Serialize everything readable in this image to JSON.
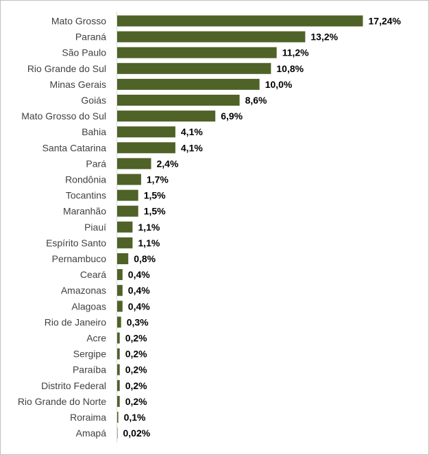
{
  "chart_data": {
    "type": "bar",
    "orientation": "horizontal",
    "title": "",
    "xlabel": "",
    "ylabel": "",
    "grid": false,
    "legend": "none",
    "bar_color": "#4f6228",
    "axis_color": "#d9d9d9",
    "xlim": [
      0,
      17.24
    ],
    "categories": [
      "Mato Grosso",
      "Paraná",
      "São Paulo",
      "Rio Grande do Sul",
      "Minas Gerais",
      "Goiás",
      "Mato Grosso do Sul",
      "Bahia",
      "Santa Catarina",
      "Pará",
      "Rondônia",
      "Tocantins",
      "Maranhão",
      "Piauí",
      "Espírito Santo",
      "Pernambuco",
      "Ceará",
      "Amazonas",
      "Alagoas",
      "Rio de Janeiro",
      "Acre",
      "Sergipe",
      "Paraíba",
      "Distrito Federal",
      "Rio Grande do Norte",
      "Roraima",
      "Amapá"
    ],
    "values": [
      17.24,
      13.2,
      11.2,
      10.8,
      10.0,
      8.6,
      6.9,
      4.1,
      4.1,
      2.4,
      1.7,
      1.5,
      1.5,
      1.1,
      1.1,
      0.8,
      0.4,
      0.4,
      0.4,
      0.3,
      0.2,
      0.2,
      0.2,
      0.2,
      0.2,
      0.1,
      0.02
    ],
    "data_labels": [
      "17,24%",
      "13,2%",
      "11,2%",
      "10,8%",
      "10,0%",
      "8,6%",
      "6,9%",
      "4,1%",
      "4,1%",
      "2,4%",
      "1,7%",
      "1,5%",
      "1,5%",
      "1,1%",
      "1,1%",
      "0,8%",
      "0,4%",
      "0,4%",
      "0,4%",
      "0,3%",
      "0,2%",
      "0,2%",
      "0,2%",
      "0,2%",
      "0,2%",
      "0,1%",
      "0,02%"
    ]
  }
}
